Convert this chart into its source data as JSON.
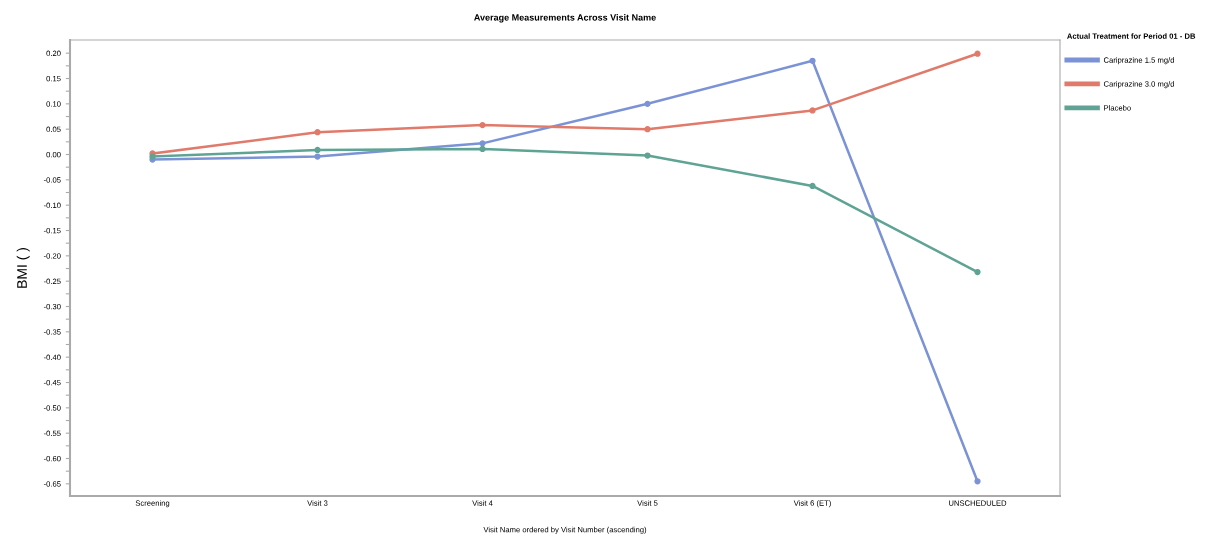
{
  "chart_data": {
    "type": "line",
    "title": "Average Measurements Across Visit Name",
    "xlabel": "Visit Name ordered by Visit Number (ascending)",
    "ylabel": "BMI ( )",
    "legend_title": "Actual Treatment for Period 01 - DB",
    "categories": [
      "Screening",
      "Visit 3",
      "Visit 4",
      "Visit 5",
      "Visit 6 (ET)",
      "UNSCHEDULED"
    ],
    "series": [
      {
        "name": "Cariprazine 1.5 mg/d",
        "color": "#7b93d6",
        "values": [
          -0.01,
          -0.004,
          0.022,
          0.1,
          0.185,
          -0.645
        ]
      },
      {
        "name": "Cariprazine 3.0 mg/d",
        "color": "#e07a6a",
        "values": [
          0.002,
          0.044,
          0.058,
          0.05,
          0.087,
          0.199
        ]
      },
      {
        "name": "Placebo",
        "color": "#5fa394",
        "values": [
          -0.004,
          0.009,
          0.011,
          -0.002,
          -0.062,
          -0.232
        ]
      }
    ],
    "ylim": [
      -0.674,
      0.226
    ],
    "yticks": [
      {
        "value": 0.2,
        "label": "0.20"
      },
      {
        "value": 0.175,
        "label": null
      },
      {
        "value": 0.15,
        "label": "0.15"
      },
      {
        "value": 0.125,
        "label": null
      },
      {
        "value": 0.1,
        "label": "0.10"
      },
      {
        "value": 0.075,
        "label": null
      },
      {
        "value": 0.05,
        "label": "0.05"
      },
      {
        "value": 0.025,
        "label": null
      },
      {
        "value": 0,
        "label": "0.00"
      },
      {
        "value": -0.025,
        "label": null
      },
      {
        "value": -0.05,
        "label": "-0.05"
      },
      {
        "value": -0.075,
        "label": null
      },
      {
        "value": -0.1,
        "label": "-0.10"
      },
      {
        "value": -0.125,
        "label": null
      },
      {
        "value": -0.15,
        "label": "-0.15"
      },
      {
        "value": -0.175,
        "label": null
      },
      {
        "value": -0.2,
        "label": "-0.20"
      },
      {
        "value": -0.225,
        "label": null
      },
      {
        "value": -0.25,
        "label": "-0.25"
      },
      {
        "value": -0.275,
        "label": null
      },
      {
        "value": -0.3,
        "label": "-0.30"
      },
      {
        "value": -0.325,
        "label": null
      },
      {
        "value": -0.35,
        "label": "-0.35"
      },
      {
        "value": -0.375,
        "label": null
      },
      {
        "value": -0.4,
        "label": "-0.40"
      },
      {
        "value": -0.425,
        "label": null
      },
      {
        "value": -0.45,
        "label": "-0.45"
      },
      {
        "value": -0.475,
        "label": null
      },
      {
        "value": -0.5,
        "label": "-0.50"
      },
      {
        "value": -0.525,
        "label": null
      },
      {
        "value": -0.55,
        "label": "-0.55"
      },
      {
        "value": -0.575,
        "label": null
      },
      {
        "value": -0.6,
        "label": "-0.60"
      },
      {
        "value": -0.625,
        "label": null
      },
      {
        "value": -0.65,
        "label": "-0.65"
      }
    ],
    "marker": "circle",
    "line_style": "solid",
    "grid": false,
    "legend": "top right"
  }
}
